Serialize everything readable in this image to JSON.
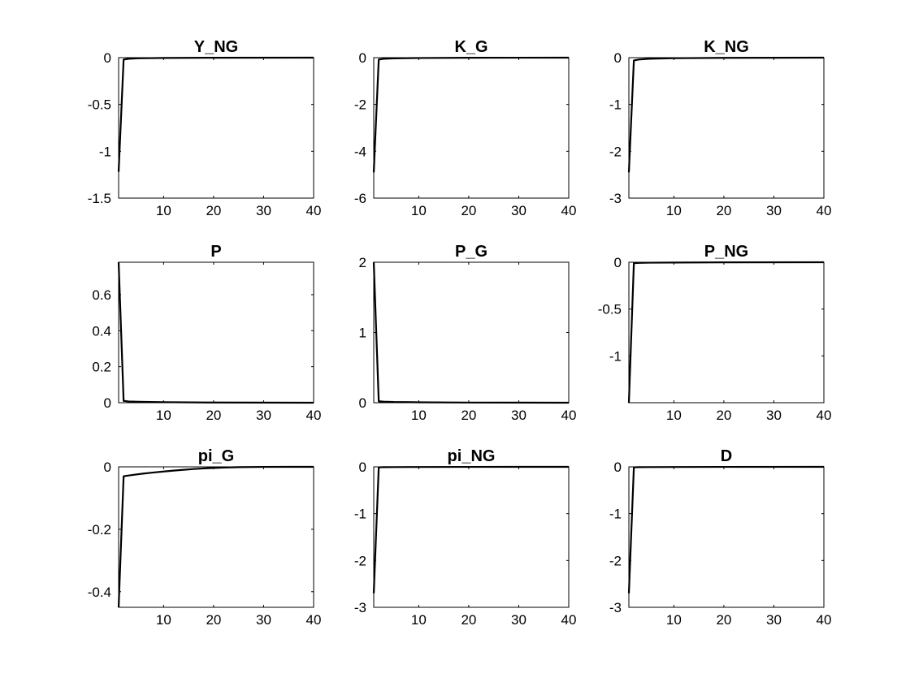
{
  "colors": {
    "response_line": "#000000",
    "zero_line": "#cc0000",
    "axes": "#000000",
    "background": "#ffffff"
  },
  "chart_data": [
    {
      "type": "line",
      "title": "Y_NG",
      "xlim": [
        1,
        40
      ],
      "ylim": [
        -1.5,
        0
      ],
      "xticks": [
        10,
        20,
        30,
        40
      ],
      "yticks": [
        0,
        -0.5,
        -1,
        -1.5
      ],
      "ytick_labels": [
        "0",
        "-0.5",
        "-1",
        "-1.5"
      ],
      "grid": false,
      "x": [
        1,
        2,
        3,
        5,
        10,
        20,
        40
      ],
      "y": [
        -1.22,
        -0.02,
        -0.012,
        -0.007,
        -0.003,
        -0.001,
        0
      ],
      "zero_line": 0
    },
    {
      "type": "line",
      "title": "K_G",
      "xlim": [
        1,
        40
      ],
      "ylim": [
        -6,
        0
      ],
      "xticks": [
        10,
        20,
        30,
        40
      ],
      "yticks": [
        0,
        -2,
        -4,
        -6
      ],
      "ytick_labels": [
        "0",
        "-2",
        "-4",
        "-6"
      ],
      "grid": false,
      "x": [
        1,
        2,
        3,
        5,
        10,
        20,
        40
      ],
      "y": [
        -4.9,
        -0.08,
        -0.05,
        -0.03,
        -0.015,
        -0.005,
        0
      ],
      "zero_line": 0
    },
    {
      "type": "line",
      "title": "K_NG",
      "xlim": [
        1,
        40
      ],
      "ylim": [
        -3,
        0
      ],
      "xticks": [
        10,
        20,
        30,
        40
      ],
      "yticks": [
        0,
        -1,
        -2,
        -3
      ],
      "ytick_labels": [
        "0",
        "-1",
        "-2",
        "-3"
      ],
      "grid": false,
      "x": [
        1,
        2,
        3,
        5,
        10,
        20,
        40
      ],
      "y": [
        -2.45,
        -0.06,
        -0.04,
        -0.025,
        -0.012,
        -0.004,
        0
      ],
      "zero_line": 0
    },
    {
      "type": "line",
      "title": "P",
      "xlim": [
        1,
        40
      ],
      "ylim": [
        0,
        0.78
      ],
      "xticks": [
        10,
        20,
        30,
        40
      ],
      "yticks": [
        0,
        0.2,
        0.4,
        0.6
      ],
      "ytick_labels": [
        "0",
        "0.2",
        "0.4",
        "0.6"
      ],
      "grid": false,
      "x": [
        1,
        2,
        3,
        5,
        10,
        20,
        40
      ],
      "y": [
        0.78,
        0.01,
        0.007,
        0.005,
        0.003,
        0.001,
        0
      ],
      "zero_line": 0
    },
    {
      "type": "line",
      "title": "P_G",
      "xlim": [
        1,
        40
      ],
      "ylim": [
        0,
        2
      ],
      "xticks": [
        10,
        20,
        30,
        40
      ],
      "yticks": [
        0,
        1,
        2
      ],
      "ytick_labels": [
        "0",
        "1",
        "2"
      ],
      "grid": false,
      "x": [
        1,
        2,
        3,
        5,
        10,
        20,
        40
      ],
      "y": [
        2.0,
        0.02,
        0.015,
        0.01,
        0.006,
        0.002,
        0
      ],
      "zero_line": 0
    },
    {
      "type": "line",
      "title": "P_NG",
      "xlim": [
        1,
        40
      ],
      "ylim": [
        -1.5,
        0
      ],
      "xticks": [
        10,
        20,
        30,
        40
      ],
      "yticks": [
        0,
        -0.5,
        -1
      ],
      "ytick_labels": [
        "0",
        "-0.5",
        "-1"
      ],
      "grid": false,
      "x": [
        1,
        2,
        3,
        5,
        10,
        20,
        40
      ],
      "y": [
        -1.5,
        -0.01,
        -0.007,
        -0.005,
        -0.003,
        -0.001,
        0
      ],
      "zero_line": 0
    },
    {
      "type": "line",
      "title": "pi_G",
      "xlim": [
        1,
        40
      ],
      "ylim": [
        -0.45,
        0
      ],
      "xticks": [
        10,
        20,
        30,
        40
      ],
      "yticks": [
        0,
        -0.2,
        -0.4
      ],
      "ytick_labels": [
        "0",
        "-0.2",
        "-0.4"
      ],
      "grid": false,
      "x": [
        1,
        2,
        4,
        6,
        8,
        10,
        12,
        14,
        16,
        18,
        20,
        22,
        25,
        30,
        35,
        40
      ],
      "y": [
        -0.45,
        -0.03,
        -0.0255,
        -0.0215,
        -0.018,
        -0.015,
        -0.012,
        -0.0095,
        -0.007,
        -0.005,
        -0.0035,
        -0.0022,
        -0.001,
        -0.0002,
        0,
        0
      ],
      "zero_line": 0
    },
    {
      "type": "line",
      "title": "pi_NG",
      "xlim": [
        1,
        40
      ],
      "ylim": [
        -3,
        0
      ],
      "xticks": [
        10,
        20,
        30,
        40
      ],
      "yticks": [
        0,
        -1,
        -2,
        -3
      ],
      "ytick_labels": [
        "0",
        "-1",
        "-2",
        "-3"
      ],
      "grid": false,
      "x": [
        1,
        2,
        3,
        5,
        10,
        20,
        40
      ],
      "y": [
        -2.7,
        -0.01,
        -0.007,
        -0.005,
        -0.003,
        -0.001,
        0
      ],
      "zero_line": 0
    },
    {
      "type": "line",
      "title": "D",
      "xlim": [
        1,
        40
      ],
      "ylim": [
        -3,
        0
      ],
      "xticks": [
        10,
        20,
        30,
        40
      ],
      "yticks": [
        0,
        -1,
        -2,
        -3
      ],
      "ytick_labels": [
        "0",
        "-1",
        "-2",
        "-3"
      ],
      "grid": false,
      "x": [
        1,
        2,
        3,
        5,
        10,
        20,
        40
      ],
      "y": [
        -2.7,
        -0.01,
        -0.007,
        -0.005,
        -0.003,
        -0.001,
        0
      ],
      "zero_line": 0
    }
  ]
}
